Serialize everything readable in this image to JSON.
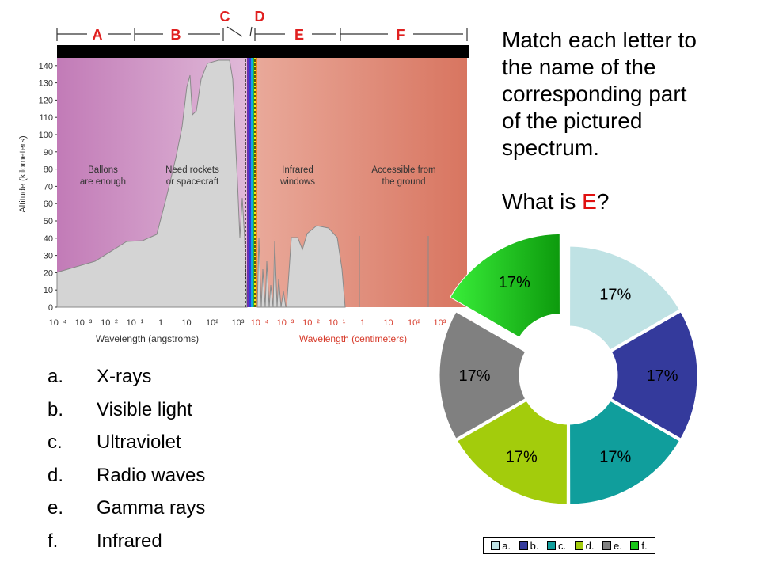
{
  "spectrum": {
    "band_letters": [
      "A",
      "B",
      "C",
      "D",
      "E",
      "F"
    ],
    "ylabel": "Altitude (kilometers)",
    "yticks": [
      "0",
      "10",
      "20",
      "30",
      "40",
      "50",
      "60",
      "70",
      "80",
      "90",
      "100",
      "110",
      "120",
      "130",
      "140"
    ],
    "xticks_angstrom": [
      "10⁻⁴",
      "10⁻³",
      "10⁻²",
      "10⁻¹",
      "1",
      "10",
      "10²",
      "10³"
    ],
    "xticks_cm": [
      "10⁻⁴",
      "10⁻³",
      "10⁻²",
      "10⁻¹",
      "1",
      "10",
      "10²",
      "10³",
      "10⁴"
    ],
    "xlabel_angstrom": "Wavelength (angstroms)",
    "xlabel_cm": "Wavelength (centimeters)",
    "region_labels": [
      [
        "Ballons",
        "are enough"
      ],
      [
        "Need rockets",
        "or spacecraft"
      ],
      [
        "Infrared",
        "windows"
      ],
      [
        "Accessible from",
        "the ground"
      ]
    ],
    "colors": {
      "band_left": "#c27bb7",
      "band_right": "#d87560",
      "curve_fill": "#d4d4d4"
    }
  },
  "question": {
    "lines": [
      "Match each letter to",
      "the name of the",
      "corresponding part",
      "of the pictured",
      "spectrum."
    ],
    "ask_prefix": "What is ",
    "ask_letter": "E",
    "ask_suffix": "?"
  },
  "options": [
    {
      "letter": "a.",
      "text": "X-rays"
    },
    {
      "letter": "b.",
      "text": "Visible light"
    },
    {
      "letter": "c.",
      "text": "Ultraviolet"
    },
    {
      "letter": "d.",
      "text": "Radio waves"
    },
    {
      "letter": "e.",
      "text": "Gamma rays"
    },
    {
      "letter": "f.",
      "text": "Infrared"
    }
  ],
  "chart_data": {
    "type": "pie",
    "categories": [
      "a.",
      "b.",
      "c.",
      "d.",
      "e.",
      "f."
    ],
    "values": [
      17,
      17,
      17,
      17,
      17,
      17
    ],
    "labels": [
      "17%",
      "17%",
      "17%",
      "17%",
      "17%",
      "17%"
    ],
    "colors": [
      "#bfe2e4",
      "#343a9c",
      "#109e9c",
      "#a3cc0c",
      "#808080",
      "#19c519"
    ],
    "exploded": "f.",
    "legend_position": "bottom"
  }
}
